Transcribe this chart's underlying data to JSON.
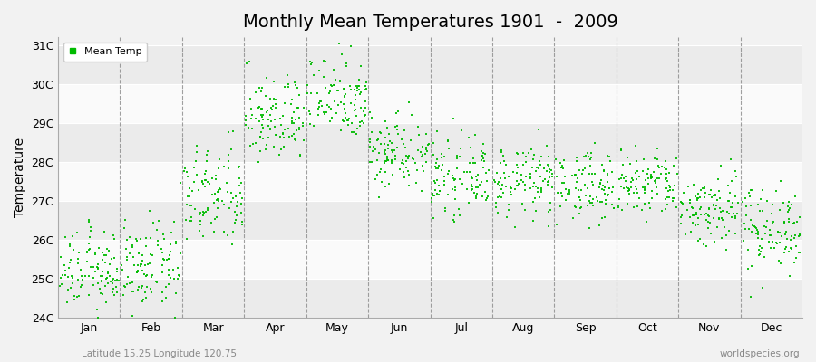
{
  "title": "Monthly Mean Temperatures 1901  -  2009",
  "ylabel": "Temperature",
  "bottom_left_text": "Latitude 15.25 Longitude 120.75",
  "bottom_right_text": "worldspecies.org",
  "legend_label": "Mean Temp",
  "marker_color": "#00bb00",
  "background_color": "#f2f2f2",
  "band_color_light": "#fafafa",
  "band_color_dark": "#ebebeb",
  "ylim": [
    24.0,
    31.2
  ],
  "ytick_labels": [
    "24C",
    "25C",
    "26C",
    "27C",
    "28C",
    "29C",
    "30C",
    "31C"
  ],
  "ytick_values": [
    24,
    25,
    26,
    27,
    28,
    29,
    30,
    31
  ],
  "month_names": [
    "Jan",
    "Feb",
    "Mar",
    "Apr",
    "May",
    "Jun",
    "Jul",
    "Aug",
    "Sep",
    "Oct",
    "Nov",
    "Dec"
  ],
  "month_means": [
    25.2,
    25.3,
    27.1,
    29.1,
    29.7,
    28.3,
    27.6,
    27.5,
    27.4,
    27.4,
    26.8,
    26.3
  ],
  "month_stds": [
    0.5,
    0.55,
    0.65,
    0.55,
    0.55,
    0.5,
    0.45,
    0.45,
    0.45,
    0.45,
    0.5,
    0.55
  ],
  "n_years": 109,
  "figsize": [
    9.0,
    4.0
  ],
  "dpi": 100,
  "title_fontsize": 14,
  "axis_fontsize": 9,
  "ylabel_fontsize": 10
}
